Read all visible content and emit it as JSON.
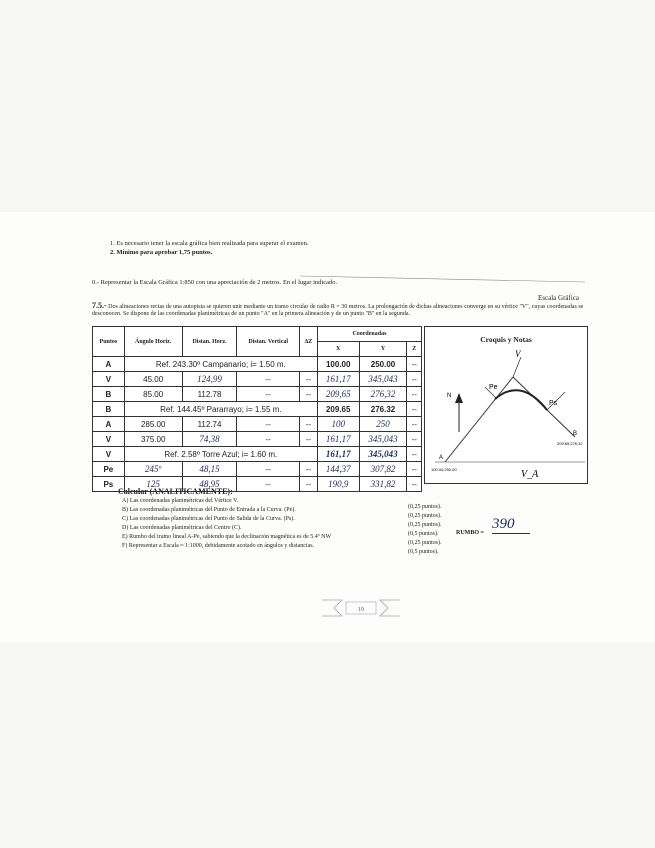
{
  "notes": [
    "1.  Es necesario tener la escala gráfica bien realizada para superar el examen.",
    "2.  Mínimo para aprobar 1,75 puntos."
  ],
  "exercise0": "0.- Representar la Escala Gráfica 1:850 con una apreciación de 2 metros. En el lugar indicado.",
  "scale_label": "Escala Gráfica",
  "exercise": {
    "number": "7.5.-",
    "text": "Dos alineaciones rectas de una autopista se quieren unir mediante un tramo circular de radio R = 30 metros. La prolongación de dichas alineaciones converge en su vértice \"V\", cuyas coordenadas se desconocen. Se dispone de las coordenadas planimétricas de un punto \"A\" en la primera alineación y de un punto \"B\" en la segunda."
  },
  "table": {
    "headers": [
      "Puntos",
      "Ángulo Horiz.",
      "Distan. Horz.",
      "Distan. Vertical",
      "ΔZ"
    ],
    "coord_header": "Coordenadas",
    "coord_subheaders": [
      "X",
      "Y",
      "Z"
    ],
    "rows": [
      [
        "A",
        "Ref. 243.30º Campanario; i=  1.50 m.",
        "100.00",
        "250.00",
        "--"
      ],
      [
        "V",
        "45.00",
        "124,99",
        "--",
        "--",
        "161,17",
        "345,043",
        "--"
      ],
      [
        "B",
        "85.00",
        "112.78",
        "--",
        "--",
        "209,65",
        "276,32",
        "--"
      ],
      [
        "B",
        "Ref. 144.45º Pararrayo; i= 1.55 m.",
        "209.65",
        "276.32",
        "--"
      ],
      [
        "A",
        "285.00",
        "112.74",
        "--",
        "--",
        "100",
        "250",
        "--"
      ],
      [
        "V",
        "375.00",
        "74,38",
        "--",
        "--",
        "161,17",
        "345,043",
        "--"
      ],
      [
        "V",
        "Ref. 2.58º Torre Azul; i=  1.60 m.",
        "161,17",
        "345,043",
        "--"
      ],
      [
        "Pe",
        "245º",
        "48,15",
        "--",
        "--",
        "144,37",
        "307,82",
        "--"
      ],
      [
        "Ps",
        "125",
        "48,95",
        "--",
        "--",
        "190,9",
        "331,82",
        "--"
      ]
    ]
  },
  "croquis": {
    "title": "Croquis y Notas",
    "north": "N",
    "vertex": "V",
    "point_a": "A",
    "point_b": "B",
    "pe": "Pe",
    "ps": "Ps",
    "va": "V_A",
    "coord_a": "100.00;250.00",
    "coord_b": "209.65;276.32"
  },
  "tasks": {
    "title": "Calcular (ANALITICAMENTE):",
    "items": [
      "A) Las coordenadas planimétricas del Vértice V.",
      "B) Las coordenadas planimétricas del Punto de Entrada a la Curva. (Pe).",
      "C) Las coordenadas planimétricas del Punto de Salida de la Curva. (Ps).",
      "D) Las coordenadas planimétricas del Centro (C).",
      "E) Rumbo del tramo lineal A-Pe, sabiendo que la declinación magnética es de 5.4º NW",
      "F) Representar a Escala ≈ 1:1000, debidamente acotado en ángulos y distancias."
    ],
    "points": [
      "(0,25 puntos).",
      "(0,25 puntos).",
      "(0,25 puntos).",
      "(0,5 puntos).",
      "(0,25 puntos).",
      "(0,5 puntos)."
    ],
    "rumbo_label": "RUMBO =",
    "rumbo_value": "390"
  },
  "footer": {
    "page": "19"
  }
}
